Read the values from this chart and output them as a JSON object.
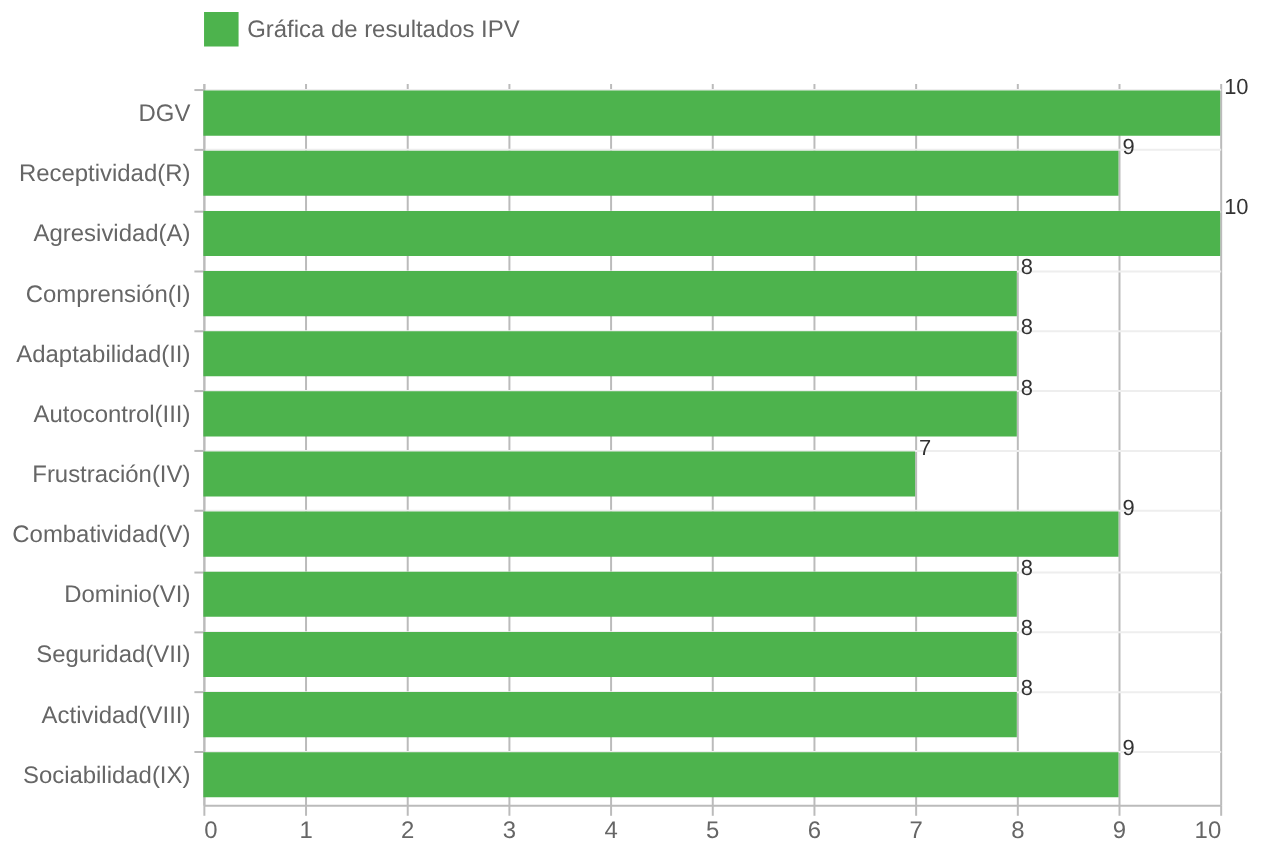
{
  "chart_data": {
    "type": "bar",
    "orientation": "horizontal",
    "categories": [
      "DGV",
      "Receptividad(R)",
      "Agresividad(A)",
      "Comprensión(I)",
      "Adaptabilidad(II)",
      "Autocontrol(III)",
      "Frustración(IV)",
      "Combatividad(V)",
      "Dominio(VI)",
      "Seguridad(VII)",
      "Actividad(VIII)",
      "Sociabilidad(IX)"
    ],
    "series": [
      {
        "name": "Gráfica de resultados IPV",
        "color": "#4db34d",
        "values": [
          10,
          9,
          10,
          8,
          8,
          8,
          7,
          9,
          8,
          8,
          8,
          9
        ]
      }
    ],
    "xlim": [
      0,
      10
    ],
    "xticks": [
      0,
      1,
      2,
      3,
      4,
      5,
      6,
      7,
      8,
      9,
      10
    ],
    "grid": true,
    "legend": "top",
    "data_labels": true
  }
}
